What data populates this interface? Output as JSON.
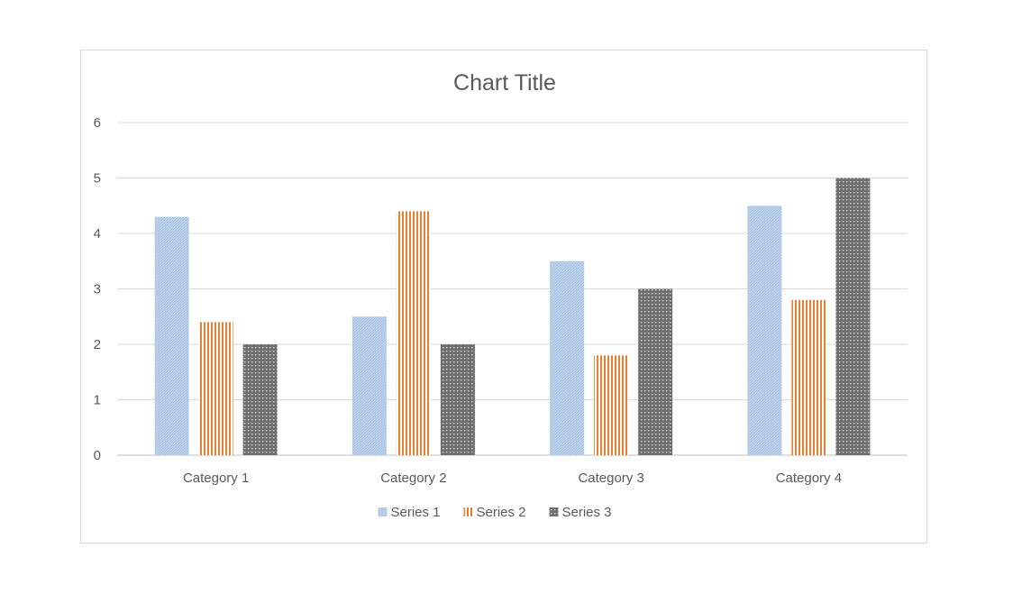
{
  "chart_data": {
    "type": "bar",
    "title": "Chart Title",
    "xlabel": "",
    "ylabel": "",
    "categories": [
      "Category 1",
      "Category 2",
      "Category 3",
      "Category 4"
    ],
    "series": [
      {
        "name": "Series 1",
        "values": [
          4.3,
          2.5,
          3.5,
          4.5
        ],
        "color": "#a9c4e4",
        "pattern": "fine-diagonal"
      },
      {
        "name": "Series 2",
        "values": [
          2.4,
          4.4,
          1.8,
          2.8
        ],
        "color": "#ed7d31",
        "pattern": "vertical-stripes"
      },
      {
        "name": "Series 3",
        "values": [
          2,
          2,
          3,
          5
        ],
        "color": "#7f7f7f",
        "pattern": "dotted-grid"
      }
    ],
    "ylim": [
      0,
      6
    ],
    "yticks": [
      0,
      1,
      2,
      3,
      4,
      5,
      6
    ],
    "grid": true,
    "legend_position": "bottom"
  }
}
